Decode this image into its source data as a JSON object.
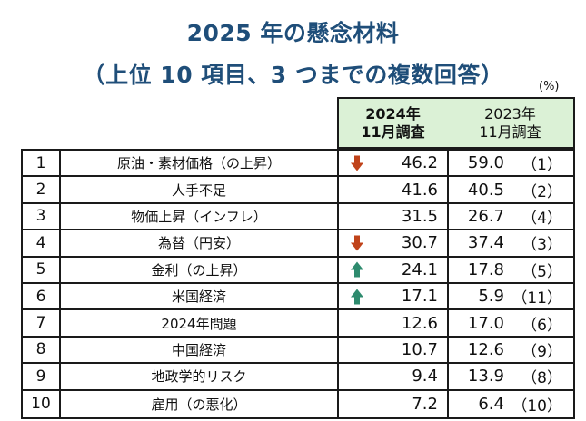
{
  "title": {
    "line1": "2025 年の懸念材料",
    "line2": "（上位 10 項目、3 つまでの複数回答）"
  },
  "unit": "(%)",
  "columns": {
    "y2024": {
      "line1": "2024年",
      "line2": "11月調査"
    },
    "y2023": {
      "line1": "2023年",
      "line2": "11月調査"
    }
  },
  "colors": {
    "title": "#1f4e79",
    "header_bg": "#dbf1d6",
    "arrow_down": "#c0431a",
    "arrow_up": "#2e8b6e"
  },
  "rows": [
    {
      "rank": "1",
      "label": "原油・素材価格（の上昇）",
      "v2024": "46.2",
      "trend": "down-arrow-icon",
      "v2023": "59.0",
      "r2023": "（1）"
    },
    {
      "rank": "2",
      "label": "人手不足",
      "v2024": "41.6",
      "trend": "",
      "v2023": "40.5",
      "r2023": "（2）"
    },
    {
      "rank": "3",
      "label": "物価上昇（インフレ）",
      "v2024": "31.5",
      "trend": "",
      "v2023": "26.7",
      "r2023": "（4）"
    },
    {
      "rank": "4",
      "label": "為替（円安）",
      "v2024": "30.7",
      "trend": "down-arrow-icon",
      "v2023": "37.4",
      "r2023": "（3）"
    },
    {
      "rank": "5",
      "label": "金利（の上昇）",
      "v2024": "24.1",
      "trend": "up-arrow-icon",
      "v2023": "17.8",
      "r2023": "（5）"
    },
    {
      "rank": "6",
      "label": "米国経済",
      "v2024": "17.1",
      "trend": "up-arrow-icon",
      "v2023": "5.9",
      "r2023": "（11）"
    },
    {
      "rank": "7",
      "label": "2024年問題",
      "v2024": "12.6",
      "trend": "",
      "v2023": "17.0",
      "r2023": "（6）"
    },
    {
      "rank": "8",
      "label": "中国経済",
      "v2024": "10.7",
      "trend": "",
      "v2023": "12.6",
      "r2023": "（9）"
    },
    {
      "rank": "9",
      "label": "地政学的リスク",
      "v2024": "9.4",
      "trend": "",
      "v2023": "13.9",
      "r2023": "（8）"
    },
    {
      "rank": "10",
      "label": "雇用（の悪化）",
      "v2024": "7.2",
      "trend": "",
      "v2023": "6.4",
      "r2023": "（10）"
    }
  ]
}
